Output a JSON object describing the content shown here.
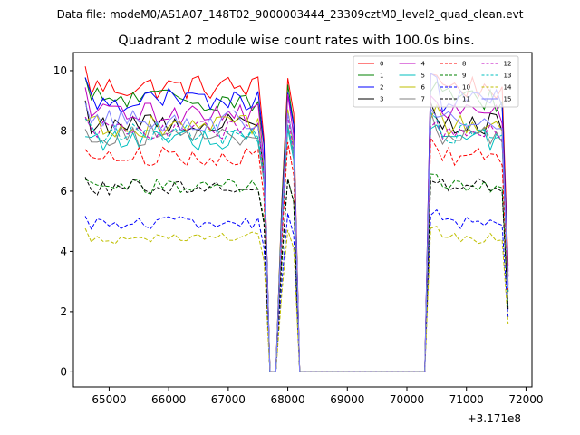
{
  "chart_data": {
    "type": "line",
    "suptitle": "Data file: modeM0/AS1A07_148T02_9000003444_23309cztM0_level2_quad_clean.evt",
    "title": "Quadrant 2 module wise count rates with 100.0s bins.",
    "xlabel": "",
    "ylabel": "",
    "x_offset_label": "+3.171e8",
    "xlim": [
      64400,
      72100
    ],
    "ylim": [
      -0.5,
      10.6
    ],
    "xticks": [
      65000,
      66000,
      67000,
      68000,
      69000,
      70000,
      71000,
      72000
    ],
    "yticks": [
      0,
      2,
      4,
      6,
      8,
      10
    ],
    "legend_position": "upper right",
    "series": [
      {
        "name": "0",
        "color": "#ff0000",
        "dash": "solid",
        "level": 9.45
      },
      {
        "name": "1",
        "color": "#008000",
        "dash": "solid",
        "level": 9.05
      },
      {
        "name": "2",
        "color": "#0000ff",
        "dash": "solid",
        "level": 9.0
      },
      {
        "name": "3",
        "color": "#000000",
        "dash": "solid",
        "level": 8.25
      },
      {
        "name": "4",
        "color": "#bf00bf",
        "dash": "solid",
        "level": 8.6
      },
      {
        "name": "5",
        "color": "#00bfbf",
        "dash": "solid",
        "level": 7.7
      },
      {
        "name": "6",
        "color": "#bfbf00",
        "dash": "solid",
        "level": 8.15
      },
      {
        "name": "7",
        "color": "#808080",
        "dash": "solid",
        "level": 7.85
      },
      {
        "name": "8",
        "color": "#ff0000",
        "dash": "dashed",
        "level": 7.15
      },
      {
        "name": "9",
        "color": "#008000",
        "dash": "dashed",
        "level": 6.15
      },
      {
        "name": "10",
        "color": "#0000ff",
        "dash": "dashed",
        "level": 4.95
      },
      {
        "name": "11",
        "color": "#000000",
        "dash": "dashed",
        "level": 6.15
      },
      {
        "name": "12",
        "color": "#bf00bf",
        "dash": "dashed",
        "level": 8.0
      },
      {
        "name": "13",
        "color": "#00bfbf",
        "dash": "dashed",
        "level": 7.9
      },
      {
        "name": "14",
        "color": "#bfbf00",
        "dash": "dashed",
        "level": 4.45
      },
      {
        "name": "15",
        "color": "#8080ff",
        "dash": "solid",
        "level": 8.3
      }
    ]
  }
}
